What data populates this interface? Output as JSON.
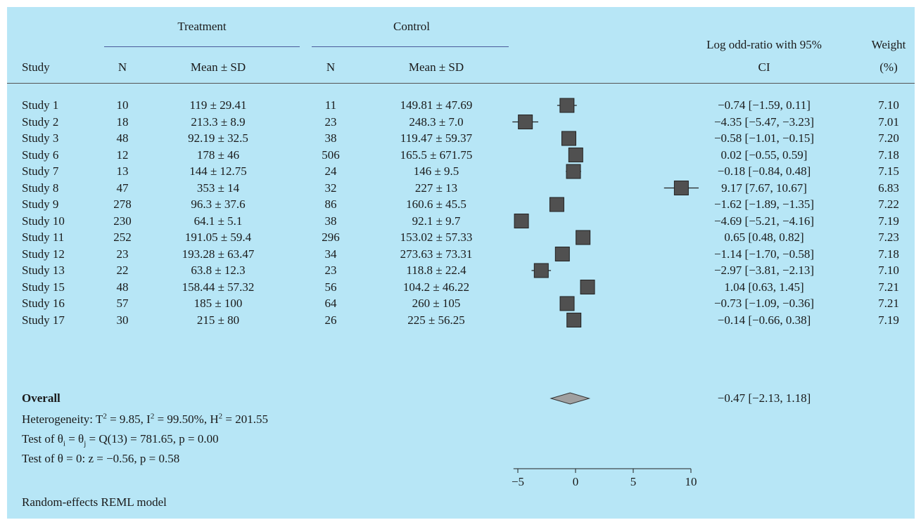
{
  "header": {
    "study": "Study",
    "treatment": "Treatment",
    "control": "Control",
    "n": "N",
    "mean_sd": "Mean ± SD",
    "effect_line1": "Log odd-ratio with 95%",
    "effect_line2": "CI",
    "weight_line1": "Weight",
    "weight_line2": "(%)"
  },
  "rows": [
    {
      "study": "Study 1",
      "t_n": "10",
      "t_mean": "119 ± 29.41",
      "c_n": "11",
      "c_mean": "149.81 ± 47.69",
      "ci": "−0.74 [−1.59, 0.11]",
      "weight": "7.10"
    },
    {
      "study": "Study 2",
      "t_n": "18",
      "t_mean": "213.3 ± 8.9",
      "c_n": "23",
      "c_mean": "248.3 ± 7.0",
      "ci": "−4.35 [−5.47, −3.23]",
      "weight": "7.01"
    },
    {
      "study": "Study 3",
      "t_n": "48",
      "t_mean": "92.19 ± 32.5",
      "c_n": "38",
      "c_mean": "119.47 ± 59.37",
      "ci": "−0.58 [−1.01, −0.15]",
      "weight": "7.20"
    },
    {
      "study": "Study 6",
      "t_n": "12",
      "t_mean": "178 ± 46",
      "c_n": "506",
      "c_mean": "165.5 ± 671.75",
      "ci": "0.02 [−0.55, 0.59]",
      "weight": "7.18"
    },
    {
      "study": "Study 7",
      "t_n": "13",
      "t_mean": "144 ± 12.75",
      "c_n": "24",
      "c_mean": "146 ± 9.5",
      "ci": "−0.18 [−0.84, 0.48]",
      "weight": "7.15"
    },
    {
      "study": "Study 8",
      "t_n": "47",
      "t_mean": "353 ± 14",
      "c_n": "32",
      "c_mean": "227 ± 13",
      "ci": "9.17 [7.67, 10.67]",
      "weight": "6.83"
    },
    {
      "study": "Study 9",
      "t_n": "278",
      "t_mean": "96.3 ± 37.6",
      "c_n": "86",
      "c_mean": "160.6 ± 45.5",
      "ci": "−1.62 [−1.89, −1.35]",
      "weight": "7.22"
    },
    {
      "study": "Study 10",
      "t_n": "230",
      "t_mean": "64.1 ± 5.1",
      "c_n": "38",
      "c_mean": "92.1 ± 9.7",
      "ci": "−4.69 [−5.21, −4.16]",
      "weight": "7.19"
    },
    {
      "study": "Study 11",
      "t_n": "252",
      "t_mean": "191.05 ± 59.4",
      "c_n": "296",
      "c_mean": "153.02 ± 57.33",
      "ci": "0.65 [0.48, 0.82]",
      "weight": "7.23"
    },
    {
      "study": "Study 12",
      "t_n": "23",
      "t_mean": "193.28 ± 63.47",
      "c_n": "34",
      "c_mean": "273.63 ± 73.31",
      "ci": "−1.14 [−1.70, −0.58]",
      "weight": "7.18"
    },
    {
      "study": "Study 13",
      "t_n": "22",
      "t_mean": "63.8 ± 12.3",
      "c_n": "23",
      "c_mean": "118.8 ± 22.4",
      "ci": "−2.97 [−3.81, −2.13]",
      "weight": "7.10"
    },
    {
      "study": "Study 15",
      "t_n": "48",
      "t_mean": "158.44 ± 57.32",
      "c_n": "56",
      "c_mean": "104.2 ± 46.22",
      "ci": "1.04 [0.63, 1.45]",
      "weight": "7.21"
    },
    {
      "study": "Study 16",
      "t_n": "57",
      "t_mean": "185 ± 100",
      "c_n": "64",
      "c_mean": "260 ± 105",
      "ci": "−0.73 [−1.09, −0.36]",
      "weight": "7.21"
    },
    {
      "study": "Study 17",
      "t_n": "30",
      "t_mean": "215 ± 80",
      "c_n": "26",
      "c_mean": "225 ± 56.25",
      "ci": "−0.14 [−0.66, 0.38]",
      "weight": "7.19"
    }
  ],
  "overall": {
    "label": "Overall",
    "ci": "−0.47 [−2.13, 1.18]"
  },
  "footer": {
    "heterogeneity_prefix": "Heterogeneity: T",
    "heterogeneity_mid1": " = 9.85, I",
    "heterogeneity_mid2": " = 99.50%, H",
    "heterogeneity_end": " = 201.55",
    "sup": "2",
    "q_prefix": "Test of θ",
    "q_sub_i": "i",
    "q_mid": " = θ",
    "q_sub_j": "j",
    "q_end": " = Q(13) = 781.65, p = 0.00",
    "z_test": "Test of θ = 0: z = −0.56, p = 0.58",
    "model": "Random-effects REML model"
  },
  "chart_data": {
    "type": "forest",
    "x_ticks": [
      "−5",
      "0",
      "5",
      "10"
    ],
    "x_tick_values": [
      -5,
      0,
      5,
      10
    ],
    "xlim": [
      -5.5,
      10
    ],
    "studies": [
      {
        "name": "Study 1",
        "estimate": -0.74,
        "lower": -1.59,
        "upper": 0.11,
        "weight": 7.1
      },
      {
        "name": "Study 2",
        "estimate": -4.35,
        "lower": -5.47,
        "upper": -3.23,
        "weight": 7.01
      },
      {
        "name": "Study 3",
        "estimate": -0.58,
        "lower": -1.01,
        "upper": -0.15,
        "weight": 7.2
      },
      {
        "name": "Study 6",
        "estimate": 0.02,
        "lower": -0.55,
        "upper": 0.59,
        "weight": 7.18
      },
      {
        "name": "Study 7",
        "estimate": -0.18,
        "lower": -0.84,
        "upper": 0.48,
        "weight": 7.15
      },
      {
        "name": "Study 8",
        "estimate": 9.17,
        "lower": 7.67,
        "upper": 10.67,
        "weight": 6.83
      },
      {
        "name": "Study 9",
        "estimate": -1.62,
        "lower": -1.89,
        "upper": -1.35,
        "weight": 7.22
      },
      {
        "name": "Study 10",
        "estimate": -4.69,
        "lower": -5.21,
        "upper": -4.16,
        "weight": 7.19
      },
      {
        "name": "Study 11",
        "estimate": 0.65,
        "lower": 0.48,
        "upper": 0.82,
        "weight": 7.23
      },
      {
        "name": "Study 12",
        "estimate": -1.14,
        "lower": -1.7,
        "upper": -0.58,
        "weight": 7.18
      },
      {
        "name": "Study 13",
        "estimate": -2.97,
        "lower": -3.81,
        "upper": -2.13,
        "weight": 7.1
      },
      {
        "name": "Study 15",
        "estimate": 1.04,
        "lower": 0.63,
        "upper": 1.45,
        "weight": 7.21
      },
      {
        "name": "Study 16",
        "estimate": -0.73,
        "lower": -1.09,
        "upper": -0.36,
        "weight": 7.21
      },
      {
        "name": "Study 17",
        "estimate": -0.14,
        "lower": -0.66,
        "upper": 0.38,
        "weight": 7.19
      }
    ],
    "overall": {
      "estimate": -0.47,
      "lower": -2.13,
      "upper": 1.18
    },
    "colors": {
      "marker": "#505050",
      "diamond": "#a0a0a0"
    }
  }
}
